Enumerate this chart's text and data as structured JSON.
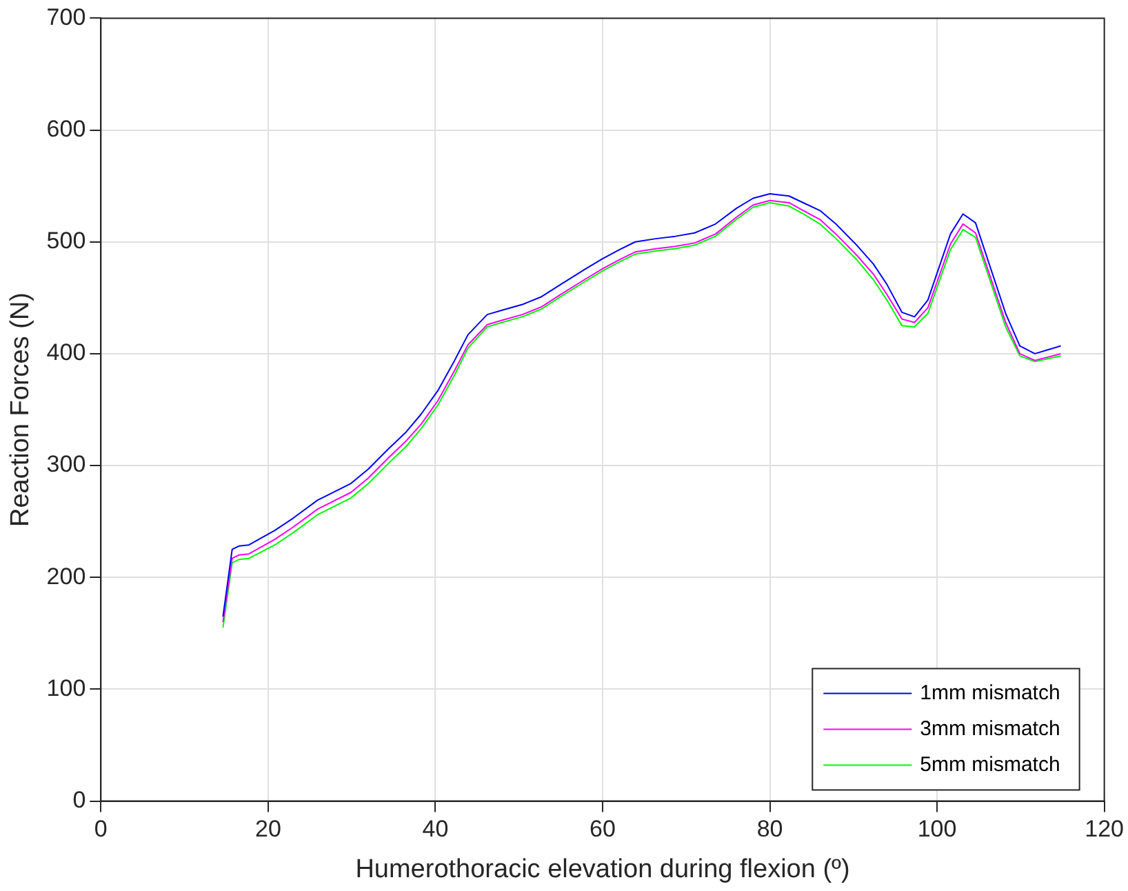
{
  "chart_data": {
    "type": "line",
    "xlabel": "Humerothoracic elevation during flexion (º)",
    "ylabel": "Reaction Forces (N)",
    "x": [
      14.6,
      15.7,
      16.5,
      17.7,
      20.8,
      23,
      25.9,
      29.9,
      32,
      34.4,
      36.5,
      38.3,
      40.3,
      42.3,
      43.9,
      46.2,
      48,
      50.4,
      52.7,
      55,
      58,
      60,
      62,
      63.9,
      66.5,
      68.7,
      71,
      73.5,
      76,
      78,
      80,
      82.3,
      84,
      86,
      87.9,
      90.4,
      92.4,
      94,
      95.8,
      97.3,
      98.9,
      101.6,
      103.1,
      104.6,
      108.2,
      109.9,
      111.7,
      114.8
    ],
    "series": [
      {
        "name": "1mm mismatch",
        "color": "#0000ff",
        "values": [
          165,
          225,
          228,
          229,
          242,
          253,
          269,
          284,
          297,
          315,
          330,
          346,
          367,
          394,
          417,
          435,
          439,
          444,
          451,
          462,
          476,
          485,
          493,
          500,
          503,
          505,
          508,
          516,
          530,
          539,
          543,
          541,
          535,
          528,
          516,
          497,
          480,
          462,
          437,
          433,
          448,
          507,
          525,
          517,
          436,
          407,
          400,
          407
        ]
      },
      {
        "name": "3mm mismatch",
        "color": "#ff00ff",
        "values": [
          160,
          217,
          220,
          221,
          234,
          245,
          261,
          276,
          289,
          307,
          322,
          337,
          358,
          385,
          408,
          426,
          430,
          435,
          442,
          453,
          467,
          476,
          484,
          491,
          494,
          496,
          499,
          507,
          522,
          533,
          537,
          535,
          528,
          520,
          507,
          488,
          471,
          453,
          431,
          428,
          441,
          498,
          516,
          508,
          428,
          400,
          394,
          400
        ]
      },
      {
        "name": "5mm mismatch",
        "color": "#00ff00",
        "values": [
          155,
          213,
          216,
          217,
          229,
          240,
          256,
          271,
          284,
          302,
          317,
          333,
          354,
          381,
          405,
          424,
          428,
          433,
          440,
          451,
          465,
          474,
          482,
          489,
          492,
          494,
          497,
          505,
          520,
          531,
          535,
          532,
          525,
          516,
          503,
          484,
          466,
          448,
          425,
          424,
          436,
          493,
          511,
          504,
          424,
          398,
          393,
          398
        ]
      }
    ],
    "xlim": [
      0,
      120
    ],
    "xticks": [
      0,
      20,
      40,
      60,
      80,
      100,
      120
    ],
    "ylim": [
      0,
      700
    ],
    "yticks": [
      0,
      100,
      200,
      300,
      400,
      500,
      600,
      700
    ],
    "grid": true,
    "legend": "bottom right",
    "marker": "none",
    "line_style": "solid"
  }
}
